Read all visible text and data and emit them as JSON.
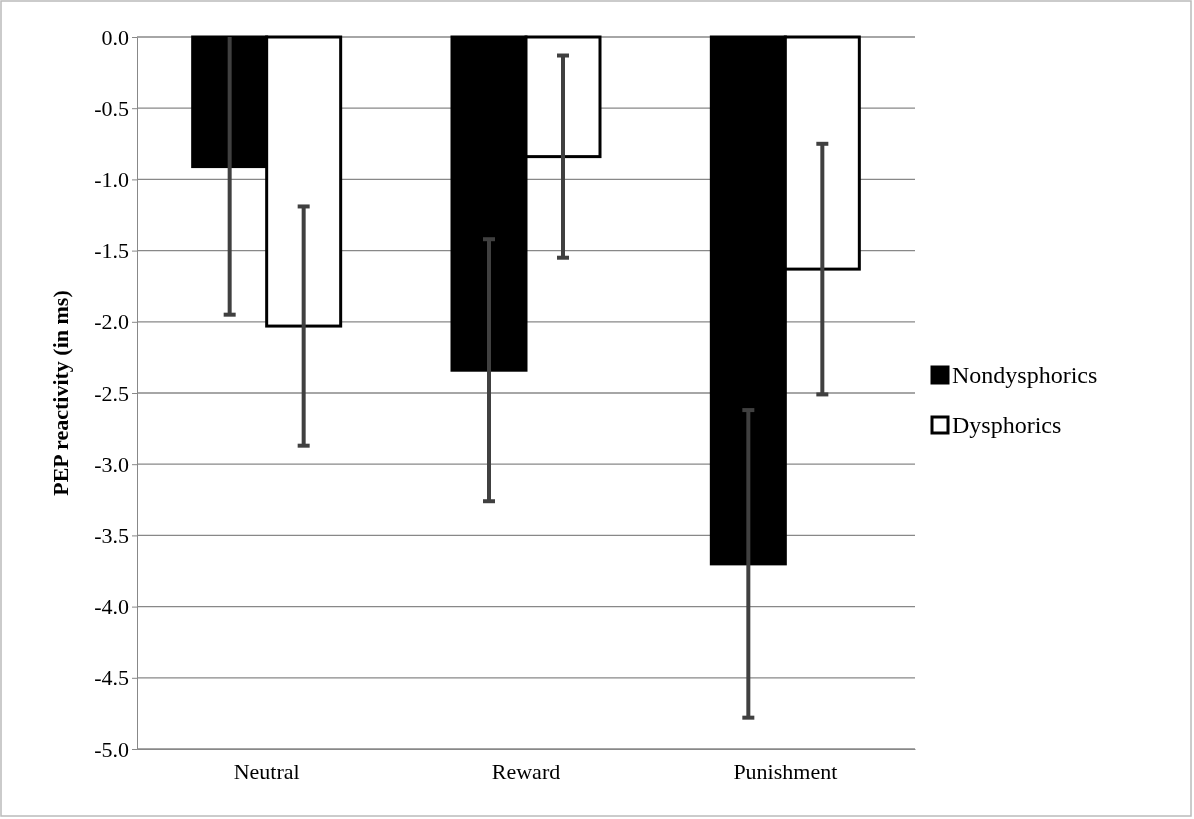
{
  "chart_data": {
    "type": "bar",
    "ylabel": "PEP reactivity (in ms)",
    "categories": [
      "Neutral",
      "Reward",
      "Punishment"
    ],
    "series": [
      {
        "name": "Nondysphorics",
        "color": "#000000",
        "values": [
          -0.91,
          -2.34,
          -3.7
        ],
        "errors": [
          [
            -1.95,
            0
          ],
          0.92,
          1.08
        ]
      },
      {
        "name": "Dysphorics",
        "color": "#ffffff",
        "values": [
          -2.03,
          -0.84,
          -1.63
        ],
        "errors": [
          0.84,
          0.71,
          0.88
        ]
      }
    ],
    "ylim": [
      -5,
      0
    ],
    "yticks": [
      {
        "value": -5,
        "label": "-5.0"
      },
      {
        "value": -4.5,
        "label": "-4.5"
      },
      {
        "value": -4,
        "label": "-4.0"
      },
      {
        "value": -3.5,
        "label": "-3.5"
      },
      {
        "value": -3,
        "label": "-3.0"
      },
      {
        "value": -2.5,
        "label": "-2.5"
      },
      {
        "value": -2,
        "label": "-2.0"
      },
      {
        "value": -1.5,
        "label": "-1.5"
      },
      {
        "value": -1,
        "label": "-1.0"
      },
      {
        "value": -0.5,
        "label": "-0.5"
      },
      {
        "value": 0,
        "label": "0.0"
      }
    ],
    "grid": true,
    "legend": "right"
  }
}
